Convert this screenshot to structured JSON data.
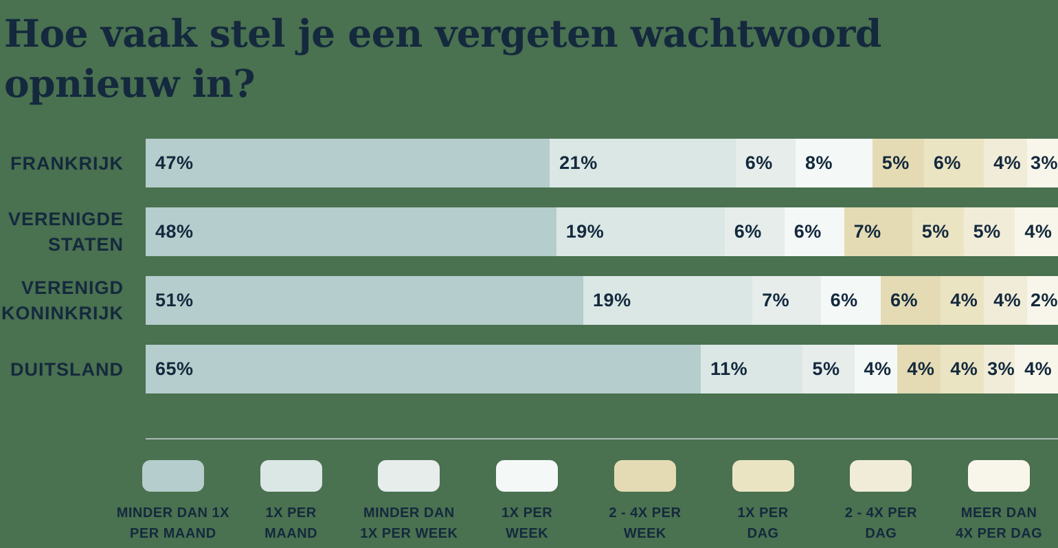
{
  "page": {
    "background_color": "#4A7150",
    "text_color": "#14293D",
    "divider_color": "#AFB8B4"
  },
  "title": {
    "text": "Hoe vaak stel je een vergeten wachtwoord opnieuw in?"
  },
  "chart_data": {
    "type": "bar",
    "orientation": "horizontal",
    "stacked": true,
    "unit": "%",
    "value_suffix": "%",
    "xlim": [
      0,
      100
    ],
    "grid": false,
    "legend_position": "bottom",
    "categories": [
      {
        "name": "Frankrijk",
        "label_lines": [
          "FRANKRIJK"
        ]
      },
      {
        "name": "Verenigde Staten",
        "label_lines": [
          "VERENIGDE",
          "STATEN"
        ]
      },
      {
        "name": "Verenigd Koninkrijk",
        "label_lines": [
          "VERENIGD",
          "KONINKRIJK"
        ]
      },
      {
        "name": "Duitsland",
        "label_lines": [
          "DUITSLAND"
        ]
      }
    ],
    "series": [
      {
        "name": "Minder dan 1x per maand",
        "legend_lines": [
          "MINDER DAN 1X",
          "PER MAAND"
        ],
        "color": "#B5CDCC",
        "values": [
          47,
          48,
          51,
          65
        ]
      },
      {
        "name": "1x per maand",
        "legend_lines": [
          "1X PER",
          "MAAND"
        ],
        "color": "#DBE7E5",
        "values": [
          21,
          19,
          19,
          11
        ]
      },
      {
        "name": "Minder dan 1x per week",
        "legend_lines": [
          "MINDER DAN",
          "1X PER WEEK"
        ],
        "color": "#E6EDEB",
        "values": [
          6,
          6,
          7,
          5
        ]
      },
      {
        "name": "1x per week",
        "legend_lines": [
          "1X PER",
          "WEEK"
        ],
        "color": "#F4F8F7",
        "values": [
          8,
          6,
          6,
          4
        ]
      },
      {
        "name": "2 - 4x per week",
        "legend_lines": [
          "2 - 4X PER",
          "WEEK"
        ],
        "color": "#E4DBB4",
        "values": [
          5,
          7,
          6,
          4
        ]
      },
      {
        "name": "1x per dag",
        "legend_lines": [
          "1X PER",
          "DAG"
        ],
        "color": "#EBE4C3",
        "values": [
          6,
          5,
          4,
          4
        ]
      },
      {
        "name": "2 - 4x per dag",
        "legend_lines": [
          "2 - 4X PER",
          "DAG"
        ],
        "color": "#F1ECD8",
        "values": [
          4,
          5,
          4,
          3
        ]
      },
      {
        "name": "Meer dan 4x per dag",
        "legend_lines": [
          "MEER DAN",
          "4X PER DAG"
        ],
        "color": "#F8F6EA",
        "values": [
          3,
          4,
          2,
          4
        ]
      }
    ]
  }
}
